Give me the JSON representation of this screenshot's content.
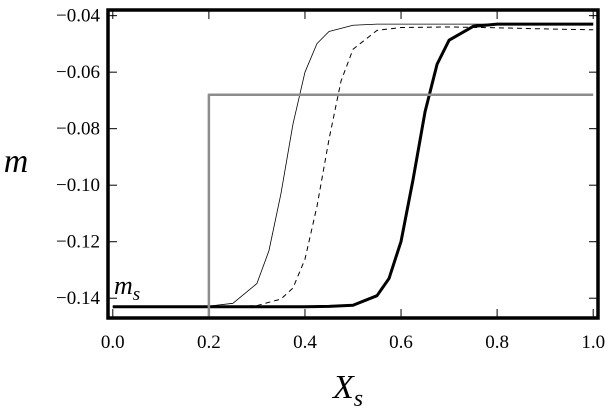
{
  "chart_data": {
    "type": "line",
    "ylabel": "m",
    "xlabel": "X",
    "xlabel_sub": "s",
    "annotation": "m",
    "annotation_sub": "s",
    "xlim": [
      -0.01,
      1.01
    ],
    "ylim": [
      -0.147,
      -0.038
    ],
    "xticks": [
      {
        "value": 0,
        "label": "0.0"
      },
      {
        "value": 0.2,
        "label": "0.2"
      },
      {
        "value": 0.4,
        "label": "0.4"
      },
      {
        "value": 0.6,
        "label": "0.6"
      },
      {
        "value": 0.8,
        "label": "0.8"
      },
      {
        "value": 1,
        "label": "1.0"
      }
    ],
    "yticks": [
      {
        "value": -0.14,
        "label": "−0.14"
      },
      {
        "value": -0.12,
        "label": "−0.12"
      },
      {
        "value": -0.1,
        "label": "−0.10"
      },
      {
        "value": -0.08,
        "label": "−0.08"
      },
      {
        "value": -0.06,
        "label": "−0.06"
      },
      {
        "value": -0.04,
        "label": "−0.04"
      }
    ],
    "series": [
      {
        "color": "#000000",
        "style": "thin",
        "x": [
          0,
          0.1,
          0.2,
          0.25,
          0.3,
          0.325,
          0.35,
          0.375,
          0.4,
          0.425,
          0.45,
          0.5,
          0.55,
          0.6,
          0.8,
          1.0
        ],
        "values": [
          -0.143,
          -0.143,
          -0.1428,
          -0.1418,
          -0.1348,
          -0.1232,
          -0.103,
          -0.0784,
          -0.06,
          -0.0499,
          -0.0456,
          -0.0434,
          -0.043,
          -0.043,
          -0.043,
          -0.043
        ]
      },
      {
        "color": "#000000",
        "style": "dashed",
        "x": [
          0,
          0.1,
          0.2,
          0.25,
          0.3,
          0.35,
          0.375,
          0.4,
          0.425,
          0.45,
          0.475,
          0.5,
          0.55,
          0.6,
          0.7,
          0.8,
          0.9,
          1.0
        ],
        "values": [
          -0.143,
          -0.143,
          -0.143,
          -0.143,
          -0.1426,
          -0.1403,
          -0.1364,
          -0.1262,
          -0.1075,
          -0.0838,
          -0.0632,
          -0.0519,
          -0.0452,
          -0.0442,
          -0.044,
          -0.0443,
          -0.0447,
          -0.045
        ]
      },
      {
        "color": "#000000",
        "style": "thick",
        "x": [
          0,
          0.2,
          0.4,
          0.45,
          0.5,
          0.55,
          0.575,
          0.6,
          0.625,
          0.65,
          0.675,
          0.7,
          0.75,
          0.8,
          0.9,
          1.0
        ],
        "values": [
          -0.143,
          -0.143,
          -0.143,
          -0.1429,
          -0.1425,
          -0.1391,
          -0.133,
          -0.1199,
          -0.098,
          -0.074,
          -0.0572,
          -0.0487,
          -0.0438,
          -0.043,
          -0.043,
          -0.043
        ]
      },
      {
        "color": "#8c8c8c",
        "style": "step",
        "x": [
          0.2,
          0.2,
          1.0
        ],
        "values": [
          -0.147,
          -0.068,
          -0.068
        ]
      }
    ]
  }
}
